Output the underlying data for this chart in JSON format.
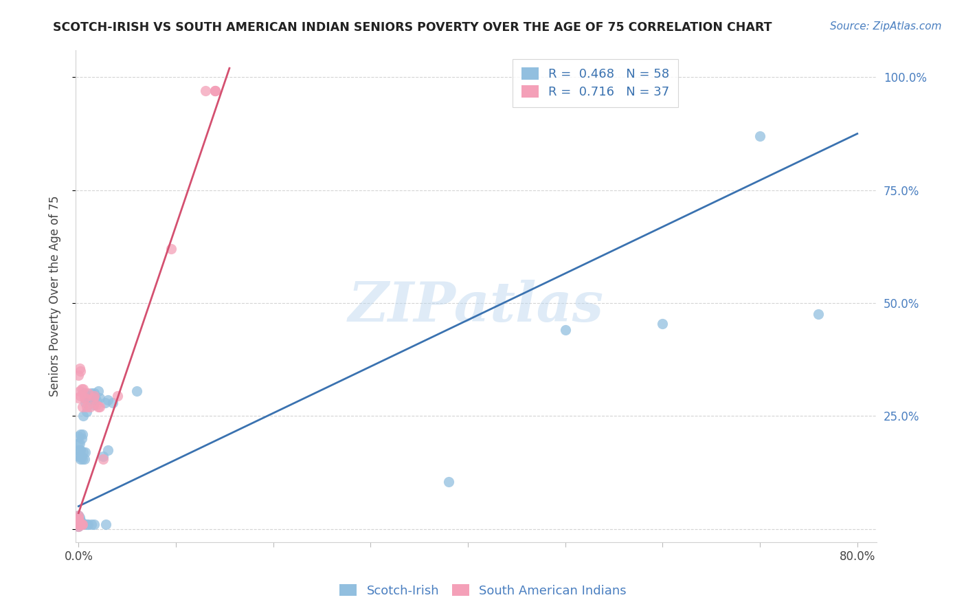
{
  "title": "SCOTCH-IRISH VS SOUTH AMERICAN INDIAN SENIORS POVERTY OVER THE AGE OF 75 CORRELATION CHART",
  "source": "Source: ZipAtlas.com",
  "ylabel": "Seniors Poverty Over the Age of 75",
  "watermark": "ZIPatlas",
  "xlim_min": -0.003,
  "xlim_max": 0.82,
  "ylim_min": -0.03,
  "ylim_max": 1.06,
  "blue_color": "#92bfdf",
  "pink_color": "#f4a0b8",
  "blue_line_color": "#3a72b0",
  "pink_line_color": "#d45070",
  "grid_color": "#d0d0d0",
  "background_color": "#ffffff",
  "right_tick_color": "#4a7fc0",
  "title_fontsize": 12.5,
  "source_fontsize": 11,
  "axis_label_fontsize": 12,
  "tick_fontsize": 12,
  "legend_fontsize": 13,
  "scatter_size": 120,
  "blue_line_x": [
    0.0,
    0.8
  ],
  "blue_line_y": [
    0.05,
    0.875
  ],
  "pink_line_x": [
    0.0,
    0.155
  ],
  "pink_line_y": [
    0.035,
    1.02
  ],
  "blue_pts_x": [
    0.0,
    0.0,
    0.0,
    0.0,
    0.0,
    0.0,
    0.0,
    0.0,
    0.0,
    0.0,
    0.001,
    0.001,
    0.001,
    0.001,
    0.001,
    0.001,
    0.001,
    0.002,
    0.002,
    0.002,
    0.002,
    0.002,
    0.003,
    0.003,
    0.003,
    0.003,
    0.004,
    0.004,
    0.005,
    0.005,
    0.005,
    0.006,
    0.006,
    0.007,
    0.007,
    0.008,
    0.008,
    0.008,
    0.01,
    0.01,
    0.011,
    0.013,
    0.013,
    0.015,
    0.016,
    0.016,
    0.017,
    0.018,
    0.02,
    0.022,
    0.025,
    0.027,
    0.028,
    0.03,
    0.03,
    0.035,
    0.06,
    0.38,
    0.5,
    0.6,
    0.7,
    0.76
  ],
  "blue_pts_y": [
    0.005,
    0.01,
    0.015,
    0.02,
    0.025,
    0.03,
    0.16,
    0.175,
    0.19,
    0.205,
    0.01,
    0.015,
    0.02,
    0.025,
    0.16,
    0.175,
    0.19,
    0.01,
    0.015,
    0.155,
    0.175,
    0.21,
    0.01,
    0.015,
    0.16,
    0.2,
    0.155,
    0.21,
    0.01,
    0.17,
    0.25,
    0.155,
    0.3,
    0.17,
    0.28,
    0.01,
    0.26,
    0.29,
    0.01,
    0.295,
    0.285,
    0.01,
    0.3,
    0.275,
    0.01,
    0.3,
    0.29,
    0.285,
    0.305,
    0.29,
    0.16,
    0.28,
    0.01,
    0.285,
    0.175,
    0.28,
    0.305,
    0.105,
    0.44,
    0.455,
    0.87,
    0.475
  ],
  "pink_pts_x": [
    0.0,
    0.0,
    0.0,
    0.0,
    0.0,
    0.0,
    0.0,
    0.0,
    0.001,
    0.001,
    0.001,
    0.001,
    0.002,
    0.002,
    0.002,
    0.003,
    0.003,
    0.004,
    0.004,
    0.005,
    0.006,
    0.007,
    0.008,
    0.01,
    0.012,
    0.015,
    0.016,
    0.018,
    0.02,
    0.022,
    0.025,
    0.04,
    0.095,
    0.13,
    0.14,
    0.14,
    0.14
  ],
  "pink_pts_y": [
    0.005,
    0.01,
    0.015,
    0.02,
    0.025,
    0.03,
    0.29,
    0.34,
    0.01,
    0.015,
    0.305,
    0.355,
    0.01,
    0.295,
    0.35,
    0.01,
    0.31,
    0.01,
    0.27,
    0.31,
    0.29,
    0.29,
    0.27,
    0.3,
    0.27,
    0.29,
    0.295,
    0.275,
    0.27,
    0.27,
    0.155,
    0.295,
    0.62,
    0.97,
    0.97,
    0.97,
    0.97
  ]
}
